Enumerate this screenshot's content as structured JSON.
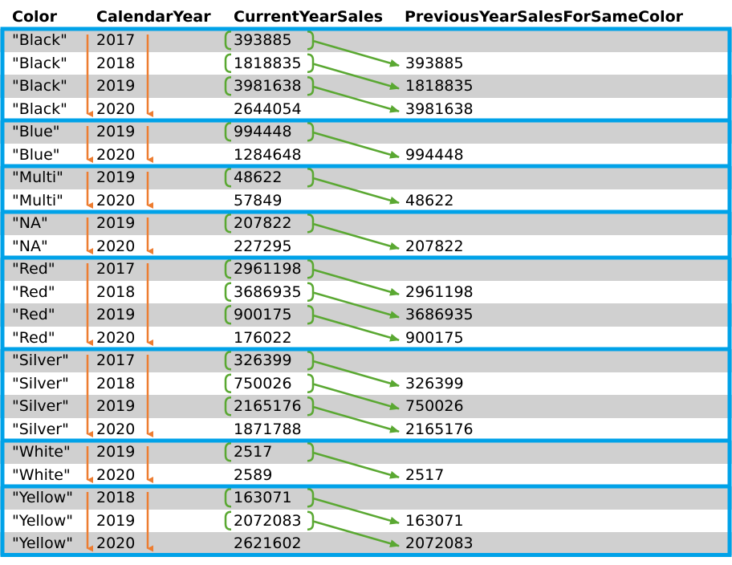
{
  "headers": {
    "color": "Color",
    "calendar_year": "CalendarYear",
    "current_year_sales": "CurrentYearSales",
    "previous_year_sales": "PreviousYearSalesForSameColor"
  },
  "colors": {
    "group_border": "#00a2e8",
    "header_text": "#000000",
    "year_arrow": "#ed7d31",
    "bracket_arrow": "#5aa832",
    "row_shade": "#d0d0d0"
  },
  "groups": [
    {
      "color": "\"Black\"",
      "rows": [
        {
          "year": "2017",
          "current": "393885",
          "previous": ""
        },
        {
          "year": "2018",
          "current": "1818835",
          "previous": "393885"
        },
        {
          "year": "2019",
          "current": "3981638",
          "previous": "1818835"
        },
        {
          "year": "2020",
          "current": "2644054",
          "previous": "3981638"
        }
      ]
    },
    {
      "color": "\"Blue\"",
      "rows": [
        {
          "year": "2019",
          "current": "994448",
          "previous": ""
        },
        {
          "year": "2020",
          "current": "1284648",
          "previous": "994448"
        }
      ]
    },
    {
      "color": "\"Multi\"",
      "rows": [
        {
          "year": "2019",
          "current": "48622",
          "previous": ""
        },
        {
          "year": "2020",
          "current": "57849",
          "previous": "48622"
        }
      ]
    },
    {
      "color": "\"NA\"",
      "rows": [
        {
          "year": "2019",
          "current": "207822",
          "previous": ""
        },
        {
          "year": "2020",
          "current": "227295",
          "previous": "207822"
        }
      ]
    },
    {
      "color": "\"Red\"",
      "rows": [
        {
          "year": "2017",
          "current": "2961198",
          "previous": ""
        },
        {
          "year": "2018",
          "current": "3686935",
          "previous": "2961198"
        },
        {
          "year": "2019",
          "current": "900175",
          "previous": "3686935"
        },
        {
          "year": "2020",
          "current": "176022",
          "previous": "900175"
        }
      ]
    },
    {
      "color": "\"Silver\"",
      "rows": [
        {
          "year": "2017",
          "current": "326399",
          "previous": ""
        },
        {
          "year": "2018",
          "current": "750026",
          "previous": "326399"
        },
        {
          "year": "2019",
          "current": "2165176",
          "previous": "750026"
        },
        {
          "year": "2020",
          "current": "1871788",
          "previous": "2165176"
        }
      ]
    },
    {
      "color": "\"White\"",
      "rows": [
        {
          "year": "2019",
          "current": "2517",
          "previous": ""
        },
        {
          "year": "2020",
          "current": "2589",
          "previous": "2517"
        }
      ]
    },
    {
      "color": "\"Yellow\"",
      "rows": [
        {
          "year": "2018",
          "current": "163071",
          "previous": ""
        },
        {
          "year": "2019",
          "current": "2072083",
          "previous": "163071"
        },
        {
          "year": "2020",
          "current": "2621602",
          "previous": "2072083"
        }
      ]
    }
  ]
}
